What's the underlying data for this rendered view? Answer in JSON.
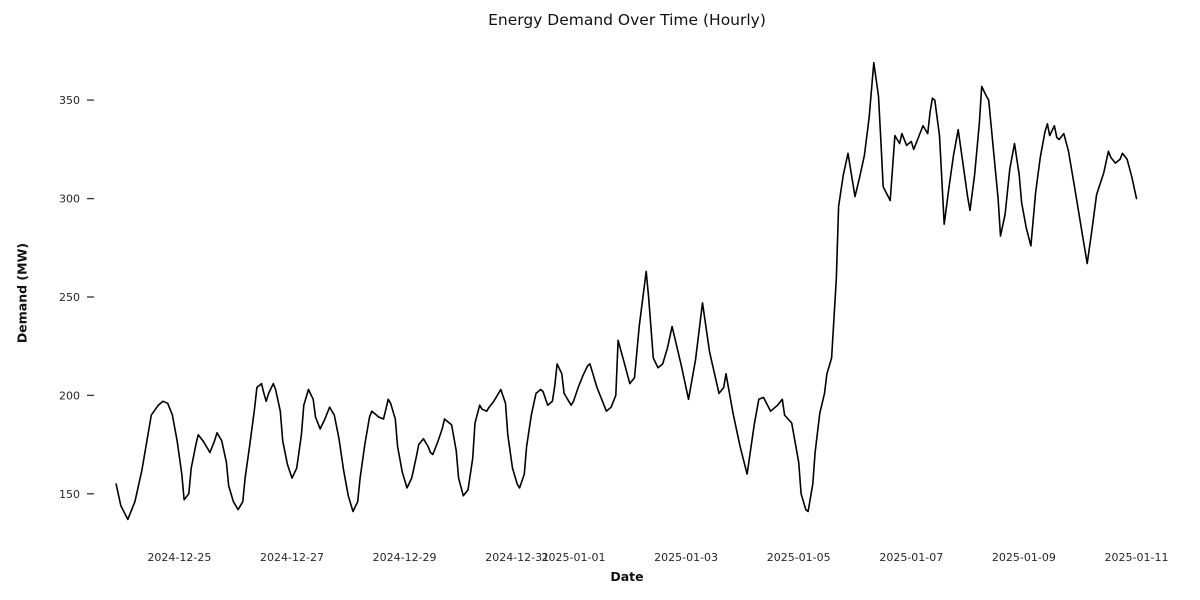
{
  "figure": {
    "background": "#ffffff",
    "text_color": "#111111",
    "tick_label_color": "#262626",
    "tick_mark_color": "#333333"
  },
  "chart_data": {
    "type": "line",
    "title": "Energy Demand Over Time (Hourly)",
    "xlabel": "Date",
    "ylabel": "Demand (MW)",
    "grid": false,
    "legend": null,
    "line_color": "#000000",
    "line_width": 1.6,
    "x_unit": "hours_since_2024-12-24_00:00",
    "xlim": [
      -12,
      445
    ],
    "ylim": [
      124,
      377
    ],
    "y_ticks": [
      150,
      200,
      250,
      300,
      350
    ],
    "x_ticks": [
      {
        "t": 24,
        "label": "2024-12-25"
      },
      {
        "t": 72,
        "label": "2024-12-27"
      },
      {
        "t": 120,
        "label": "2024-12-29"
      },
      {
        "t": 168,
        "label": "2024-12-31"
      },
      {
        "t": 192,
        "label": "2025-01-01"
      },
      {
        "t": 240,
        "label": "2025-01-03"
      },
      {
        "t": 288,
        "label": "2025-01-05"
      },
      {
        "t": 336,
        "label": "2025-01-07"
      },
      {
        "t": 384,
        "label": "2025-01-09"
      },
      {
        "t": 432,
        "label": "2025-01-11"
      }
    ],
    "series": [
      {
        "name": "demand",
        "points": [
          [
            -3,
            155
          ],
          [
            -1,
            144
          ],
          [
            2,
            137
          ],
          [
            5,
            146
          ],
          [
            8,
            162
          ],
          [
            10,
            176
          ],
          [
            12,
            190
          ],
          [
            15,
            195
          ],
          [
            17,
            197
          ],
          [
            19,
            196
          ],
          [
            21,
            190
          ],
          [
            23,
            177
          ],
          [
            25,
            160
          ],
          [
            26,
            147
          ],
          [
            28,
            150
          ],
          [
            29,
            163
          ],
          [
            31,
            175
          ],
          [
            32,
            180
          ],
          [
            34,
            177
          ],
          [
            36,
            173
          ],
          [
            37,
            171
          ],
          [
            39,
            177
          ],
          [
            40,
            181
          ],
          [
            42,
            177
          ],
          [
            44,
            166
          ],
          [
            45,
            154
          ],
          [
            47,
            146
          ],
          [
            49,
            142
          ],
          [
            51,
            146
          ],
          [
            52,
            158
          ],
          [
            54,
            175
          ],
          [
            56,
            193
          ],
          [
            57,
            204
          ],
          [
            59,
            206
          ],
          [
            60,
            201
          ],
          [
            61,
            197
          ],
          [
            62,
            201
          ],
          [
            64,
            206
          ],
          [
            65,
            203
          ],
          [
            67,
            192
          ],
          [
            68,
            177
          ],
          [
            70,
            165
          ],
          [
            72,
            158
          ],
          [
            74,
            163
          ],
          [
            76,
            180
          ],
          [
            77,
            195
          ],
          [
            79,
            203
          ],
          [
            81,
            198
          ],
          [
            82,
            189
          ],
          [
            84,
            183
          ],
          [
            86,
            188
          ],
          [
            88,
            194
          ],
          [
            90,
            190
          ],
          [
            92,
            178
          ],
          [
            94,
            162
          ],
          [
            96,
            149
          ],
          [
            98,
            141
          ],
          [
            100,
            146
          ],
          [
            101,
            158
          ],
          [
            103,
            175
          ],
          [
            105,
            189
          ],
          [
            106,
            192
          ],
          [
            108,
            190
          ],
          [
            109,
            189
          ],
          [
            111,
            188
          ],
          [
            112,
            193
          ],
          [
            113,
            198
          ],
          [
            114,
            196
          ],
          [
            116,
            188
          ],
          [
            117,
            174
          ],
          [
            119,
            161
          ],
          [
            121,
            153
          ],
          [
            123,
            158
          ],
          [
            125,
            169
          ],
          [
            126,
            175
          ],
          [
            128,
            178
          ],
          [
            130,
            174
          ],
          [
            131,
            171
          ],
          [
            132,
            170
          ],
          [
            134,
            176
          ],
          [
            136,
            183
          ],
          [
            137,
            188
          ],
          [
            140,
            185
          ],
          [
            142,
            172
          ],
          [
            143,
            158
          ],
          [
            145,
            149
          ],
          [
            147,
            152
          ],
          [
            149,
            168
          ],
          [
            150,
            186
          ],
          [
            152,
            195
          ],
          [
            153,
            193
          ],
          [
            155,
            192
          ],
          [
            156,
            194
          ],
          [
            158,
            197
          ],
          [
            159,
            199
          ],
          [
            161,
            203
          ],
          [
            163,
            196
          ],
          [
            164,
            180
          ],
          [
            166,
            163
          ],
          [
            168,
            155
          ],
          [
            169,
            153
          ],
          [
            171,
            160
          ],
          [
            172,
            174
          ],
          [
            174,
            190
          ],
          [
            176,
            201
          ],
          [
            178,
            203
          ],
          [
            179,
            202
          ],
          [
            181,
            195
          ],
          [
            183,
            197
          ],
          [
            184,
            205
          ],
          [
            185,
            216
          ],
          [
            187,
            211
          ],
          [
            188,
            201
          ],
          [
            190,
            197
          ],
          [
            191,
            195
          ],
          [
            192,
            197
          ],
          [
            194,
            204
          ],
          [
            196,
            210
          ],
          [
            198,
            215
          ],
          [
            199,
            216
          ],
          [
            200,
            212
          ],
          [
            202,
            204
          ],
          [
            204,
            198
          ],
          [
            206,
            192
          ],
          [
            208,
            194
          ],
          [
            210,
            200
          ],
          [
            211,
            228
          ],
          [
            214,
            215
          ],
          [
            216,
            206
          ],
          [
            218,
            209
          ],
          [
            220,
            235
          ],
          [
            223,
            263
          ],
          [
            224,
            250
          ],
          [
            226,
            219
          ],
          [
            228,
            214
          ],
          [
            230,
            216
          ],
          [
            232,
            224
          ],
          [
            234,
            235
          ],
          [
            238,
            215
          ],
          [
            241,
            198
          ],
          [
            244,
            218
          ],
          [
            247,
            247
          ],
          [
            250,
            222
          ],
          [
            254,
            201
          ],
          [
            256,
            204
          ],
          [
            257,
            211
          ],
          [
            260,
            191
          ],
          [
            263,
            174
          ],
          [
            266,
            160
          ],
          [
            269,
            185
          ],
          [
            271,
            198
          ],
          [
            273,
            199
          ],
          [
            276,
            192
          ],
          [
            279,
            195
          ],
          [
            281,
            198
          ],
          [
            282,
            190
          ],
          [
            285,
            186
          ],
          [
            288,
            166
          ],
          [
            289,
            150
          ],
          [
            291,
            142
          ],
          [
            292,
            141
          ],
          [
            294,
            155
          ],
          [
            295,
            171
          ],
          [
            297,
            191
          ],
          [
            299,
            201
          ],
          [
            300,
            211
          ],
          [
            302,
            219
          ],
          [
            304,
            259
          ],
          [
            305,
            296
          ],
          [
            307,
            312
          ],
          [
            309,
            323
          ],
          [
            312,
            301
          ],
          [
            314,
            311
          ],
          [
            316,
            322
          ],
          [
            318,
            341
          ],
          [
            320,
            369
          ],
          [
            322,
            352
          ],
          [
            323,
            330
          ],
          [
            324,
            306
          ],
          [
            327,
            299
          ],
          [
            329,
            332
          ],
          [
            331,
            328
          ],
          [
            332,
            333
          ],
          [
            334,
            327
          ],
          [
            336,
            329
          ],
          [
            337,
            325
          ],
          [
            339,
            331
          ],
          [
            341,
            337
          ],
          [
            343,
            333
          ],
          [
            344,
            344
          ],
          [
            345,
            351
          ],
          [
            346,
            350
          ],
          [
            348,
            332
          ],
          [
            350,
            287
          ],
          [
            352,
            305
          ],
          [
            354,
            322
          ],
          [
            356,
            335
          ],
          [
            358,
            318
          ],
          [
            360,
            301
          ],
          [
            361,
            294
          ],
          [
            363,
            312
          ],
          [
            365,
            338
          ],
          [
            366,
            357
          ],
          [
            368,
            352
          ],
          [
            369,
            350
          ],
          [
            371,
            325
          ],
          [
            373,
            300
          ],
          [
            374,
            281
          ],
          [
            376,
            292
          ],
          [
            378,
            315
          ],
          [
            380,
            328
          ],
          [
            382,
            312
          ],
          [
            383,
            298
          ],
          [
            385,
            285
          ],
          [
            387,
            276
          ],
          [
            389,
            303
          ],
          [
            391,
            321
          ],
          [
            393,
            334
          ],
          [
            394,
            338
          ],
          [
            395,
            332
          ],
          [
            397,
            337
          ],
          [
            398,
            331
          ],
          [
            399,
            330
          ],
          [
            401,
            333
          ],
          [
            403,
            324
          ],
          [
            406,
            303
          ],
          [
            409,
            281
          ],
          [
            411,
            267
          ],
          [
            413,
            284
          ],
          [
            415,
            302
          ],
          [
            418,
            313
          ],
          [
            420,
            324
          ],
          [
            421,
            321
          ],
          [
            423,
            318
          ],
          [
            425,
            320
          ],
          [
            426,
            323
          ],
          [
            428,
            320
          ],
          [
            430,
            311
          ],
          [
            432,
            300
          ]
        ]
      }
    ]
  }
}
